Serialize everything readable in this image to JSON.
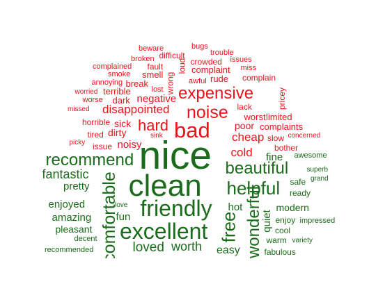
{
  "colors": {
    "negative": "#e8141a",
    "positive": "#1a6b1a",
    "background": "#ffffff"
  },
  "words": [
    {
      "text": "beware",
      "group": "negative"
    },
    {
      "text": "bugs",
      "group": "negative"
    },
    {
      "text": "broken",
      "group": "negative"
    },
    {
      "text": "difficult",
      "group": "negative"
    },
    {
      "text": "trouble",
      "group": "negative"
    },
    {
      "text": "fault",
      "group": "negative"
    },
    {
      "text": "crowded",
      "group": "negative"
    },
    {
      "text": "issues",
      "group": "negative"
    },
    {
      "text": "complained",
      "group": "negative"
    },
    {
      "text": "loud",
      "group": "negative"
    },
    {
      "text": "complaint",
      "group": "negative"
    },
    {
      "text": "miss",
      "group": "negative"
    },
    {
      "text": "smoke",
      "group": "negative"
    },
    {
      "text": "smell",
      "group": "negative"
    },
    {
      "text": "rude",
      "group": "negative"
    },
    {
      "text": "awful",
      "group": "negative"
    },
    {
      "text": "complain",
      "group": "negative"
    },
    {
      "text": "annoying",
      "group": "negative"
    },
    {
      "text": "break",
      "group": "negative"
    },
    {
      "text": "wrong",
      "group": "negative"
    },
    {
      "text": "worried",
      "group": "negative"
    },
    {
      "text": "terrible",
      "group": "negative"
    },
    {
      "text": "lost",
      "group": "negative"
    },
    {
      "text": "expensive",
      "group": "negative"
    },
    {
      "text": "pricey",
      "group": "negative"
    },
    {
      "text": "worse",
      "group": "negative"
    },
    {
      "text": "dark",
      "group": "negative"
    },
    {
      "text": "negative",
      "group": "negative"
    },
    {
      "text": "lack",
      "group": "negative"
    },
    {
      "text": "missed",
      "group": "negative"
    },
    {
      "text": "disappointed",
      "group": "negative"
    },
    {
      "text": "noise",
      "group": "negative"
    },
    {
      "text": "worst",
      "group": "negative"
    },
    {
      "text": "limited",
      "group": "negative"
    },
    {
      "text": "horrible",
      "group": "negative"
    },
    {
      "text": "sick",
      "group": "negative"
    },
    {
      "text": "hard",
      "group": "negative"
    },
    {
      "text": "bad",
      "group": "negative"
    },
    {
      "text": "poor",
      "group": "negative"
    },
    {
      "text": "complaints",
      "group": "negative"
    },
    {
      "text": "tired",
      "group": "negative"
    },
    {
      "text": "dirty",
      "group": "negative"
    },
    {
      "text": "cheap",
      "group": "negative"
    },
    {
      "text": "slow",
      "group": "negative"
    },
    {
      "text": "concerned",
      "group": "negative"
    },
    {
      "text": "sink",
      "group": "negative"
    },
    {
      "text": "picky",
      "group": "negative"
    },
    {
      "text": "issue",
      "group": "negative"
    },
    {
      "text": "noisy",
      "group": "negative"
    },
    {
      "text": "cold",
      "group": "negative"
    },
    {
      "text": "bother",
      "group": "negative"
    },
    {
      "text": "fine",
      "group": "positive"
    },
    {
      "text": "awesome",
      "group": "positive"
    },
    {
      "text": "recommend",
      "group": "positive"
    },
    {
      "text": "nice",
      "group": "positive"
    },
    {
      "text": "beautiful",
      "group": "positive"
    },
    {
      "text": "fantastic",
      "group": "positive"
    },
    {
      "text": "superb",
      "group": "positive"
    },
    {
      "text": "grand",
      "group": "positive"
    },
    {
      "text": "pretty",
      "group": "positive"
    },
    {
      "text": "clean",
      "group": "positive"
    },
    {
      "text": "helpful",
      "group": "positive"
    },
    {
      "text": "safe",
      "group": "positive"
    },
    {
      "text": "ready",
      "group": "positive"
    },
    {
      "text": "enjoyed",
      "group": "positive"
    },
    {
      "text": "comfortable",
      "group": "positive"
    },
    {
      "text": "friendly",
      "group": "positive"
    },
    {
      "text": "hot",
      "group": "positive"
    },
    {
      "text": "wonderful",
      "group": "positive"
    },
    {
      "text": "modern",
      "group": "positive"
    },
    {
      "text": "love",
      "group": "positive"
    },
    {
      "text": "free",
      "group": "positive"
    },
    {
      "text": "amazing",
      "group": "positive"
    },
    {
      "text": "fun",
      "group": "positive"
    },
    {
      "text": "enjoy",
      "group": "positive"
    },
    {
      "text": "impressed",
      "group": "positive"
    },
    {
      "text": "excellent",
      "group": "positive"
    },
    {
      "text": "quiet",
      "group": "positive"
    },
    {
      "text": "pleasant",
      "group": "positive"
    },
    {
      "text": "cool",
      "group": "positive"
    },
    {
      "text": "decent",
      "group": "positive"
    },
    {
      "text": "warm",
      "group": "positive"
    },
    {
      "text": "variety",
      "group": "positive"
    },
    {
      "text": "loved",
      "group": "positive"
    },
    {
      "text": "worth",
      "group": "positive"
    },
    {
      "text": "easy",
      "group": "positive"
    },
    {
      "text": "recommended",
      "group": "positive"
    },
    {
      "text": "fabulous",
      "group": "positive"
    }
  ]
}
